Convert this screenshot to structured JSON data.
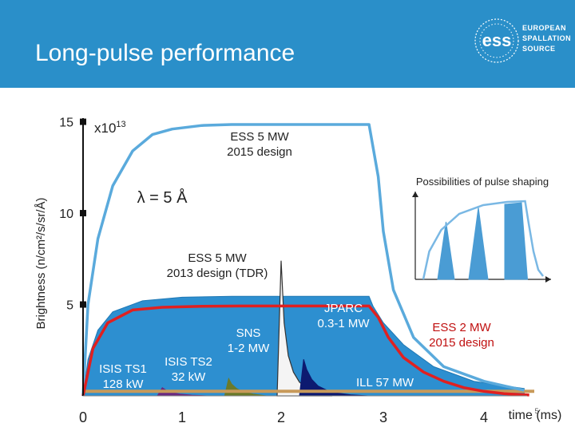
{
  "slide": {
    "title": "Long-pulse performance",
    "page_number": "5",
    "logo": {
      "lines": [
        "EUROPEAN",
        "SPALLATION",
        "SOURCE"
      ],
      "mark": "ess"
    }
  },
  "colors": {
    "header": "#2a8fc9",
    "ess2015": "#5aaadc",
    "ess2013": "#2d8fd0",
    "ess2mw": "#e02020",
    "jparc": "#f4f4f4",
    "sns": "#0d1a70",
    "isis_ts1": "#6a2a80",
    "isis_ts2": "#6a7a2a",
    "ill": "#c89a5a",
    "inset": "#4a9cd4"
  },
  "chart_data": {
    "type": "line",
    "title": "Long-pulse performance",
    "ylabel": "Brightness (n/cm²/s/sr/Å)",
    "xlabel": "time (ms)",
    "y_multiplier": "x10¹³",
    "xlim": [
      0,
      4.5
    ],
    "ylim": [
      0,
      15.2
    ],
    "x_ticks": [
      {
        "value": 0,
        "label": "0"
      },
      {
        "value": 1,
        "label": "1"
      },
      {
        "value": 2,
        "label": "2"
      },
      {
        "value": 3,
        "label": "3"
      },
      {
        "value": 4,
        "label": "4"
      }
    ],
    "y_ticks": [
      {
        "value": 5,
        "label": "5"
      },
      {
        "value": 10,
        "label": "10"
      },
      {
        "value": 15,
        "label": "15"
      }
    ],
    "wavelength_label": "λ = 5 Å",
    "series": [
      {
        "name": "ESS 5 MW 2015 design",
        "key": "ess2015",
        "style": "line",
        "x": [
          0,
          0.05,
          0.15,
          0.3,
          0.5,
          0.7,
          0.9,
          1.2,
          1.5,
          2.0,
          2.5,
          2.86,
          2.95,
          3.0,
          3.1,
          3.3,
          3.6,
          4.0,
          4.4
        ],
        "y": [
          0,
          5.0,
          8.6,
          11.5,
          13.4,
          14.3,
          14.6,
          14.8,
          14.85,
          14.85,
          14.85,
          14.85,
          12.0,
          9.0,
          5.8,
          3.2,
          1.6,
          0.8,
          0.3
        ]
      },
      {
        "name": "ESS 5 MW 2013 design (TDR)",
        "key": "ess2013",
        "style": "fill",
        "x": [
          0,
          0.05,
          0.15,
          0.3,
          0.6,
          1.0,
          1.5,
          2.0,
          2.5,
          2.86,
          2.9,
          3.0,
          3.2,
          3.5,
          3.9,
          4.4
        ],
        "y": [
          0,
          2.0,
          3.6,
          4.6,
          5.2,
          5.4,
          5.45,
          5.45,
          5.45,
          5.45,
          4.9,
          4.0,
          2.8,
          1.6,
          0.8,
          0.4
        ]
      },
      {
        "name": "ESS 2 MW 2015 design",
        "key": "ess2mw",
        "style": "line",
        "x": [
          0,
          0.1,
          0.25,
          0.5,
          0.8,
          1.2,
          1.6,
          2.0,
          2.5,
          2.86,
          2.95,
          3.05,
          3.2,
          3.4,
          3.6,
          3.8,
          4.0,
          4.2,
          4.45
        ],
        "y": [
          0,
          2.6,
          4.0,
          4.7,
          4.85,
          4.9,
          4.92,
          4.92,
          4.92,
          4.92,
          4.3,
          3.2,
          2.1,
          1.3,
          0.8,
          0.45,
          0.25,
          0.12,
          0.05
        ]
      },
      {
        "name": "JPARC 0.3-1 MW",
        "key": "jparc",
        "style": "spike",
        "x": [
          1.96,
          2.0,
          2.03,
          2.07,
          2.12,
          2.18,
          2.26,
          2.38,
          2.5
        ],
        "y": [
          0,
          7.4,
          4.0,
          2.2,
          1.3,
          0.75,
          0.4,
          0.15,
          0
        ]
      },
      {
        "name": "SNS 1-2 MW",
        "key": "sns",
        "style": "spike",
        "x": [
          2.18,
          2.22,
          2.25,
          2.3,
          2.36,
          2.45,
          2.56,
          2.68,
          2.85
        ],
        "y": [
          0,
          2.0,
          1.45,
          0.9,
          0.55,
          0.3,
          0.15,
          0.06,
          0
        ]
      },
      {
        "name": "ISIS TS2 32 kW",
        "key": "isis_ts2",
        "style": "spike",
        "x": [
          1.43,
          1.47,
          1.5,
          1.55,
          1.62,
          1.72,
          1.85
        ],
        "y": [
          0,
          0.95,
          0.65,
          0.4,
          0.22,
          0.1,
          0
        ]
      },
      {
        "name": "ISIS TS1 128 kW",
        "key": "isis_ts1",
        "style": "spike",
        "x": [
          0.75,
          0.8,
          0.84,
          0.9,
          0.98,
          1.1,
          1.25
        ],
        "y": [
          0,
          0.45,
          0.3,
          0.18,
          0.1,
          0.04,
          0
        ]
      },
      {
        "name": "ILL 57 MW",
        "key": "ill",
        "style": "flat",
        "x": [
          0,
          4.5
        ],
        "y": [
          0.25,
          0.25
        ]
      }
    ],
    "annotations": [
      {
        "key": "ess2015",
        "lines": [
          "ESS 5 MW",
          "2015 design"
        ]
      },
      {
        "key": "ess2013",
        "lines": [
          "ESS 5 MW",
          "2013 design (TDR)"
        ]
      },
      {
        "key": "jparc",
        "lines": [
          "JPARC",
          "0.3-1 MW"
        ]
      },
      {
        "key": "sns",
        "lines": [
          "SNS",
          "1-2 MW"
        ]
      },
      {
        "key": "isis_ts2",
        "lines": [
          "ISIS TS2",
          "32 kW"
        ]
      },
      {
        "key": "isis_ts1",
        "lines": [
          "ISIS TS1",
          "128 kW"
        ]
      },
      {
        "key": "ess2mw",
        "lines": [
          "ESS 2 MW",
          "2015 design"
        ]
      },
      {
        "key": "ill",
        "lines": [
          "ILL 57 MW"
        ]
      }
    ],
    "inset": {
      "title": "Possibilities of pulse shaping",
      "pulses": [
        {
          "x": [
            0,
            0.05,
            0.15,
            0.3,
            0.5,
            0.7,
            0.85,
            0.88,
            0.92,
            0.96,
            1.0
          ],
          "y": [
            0,
            0.35,
            0.62,
            0.82,
            0.93,
            0.97,
            0.98,
            0.7,
            0.35,
            0.12,
            0.04
          ]
        }
      ],
      "slices": [
        {
          "x": [
            0.12,
            0.19,
            0.26
          ],
          "y": [
            0,
            0.72,
            0
          ]
        },
        {
          "x": [
            0.38,
            0.46,
            0.54
          ],
          "y": [
            0,
            0.9,
            0
          ]
        },
        {
          "x": [
            0.68,
            0.68,
            0.82,
            0.87
          ],
          "y": [
            0,
            0.94,
            0.96,
            0
          ]
        }
      ]
    }
  }
}
